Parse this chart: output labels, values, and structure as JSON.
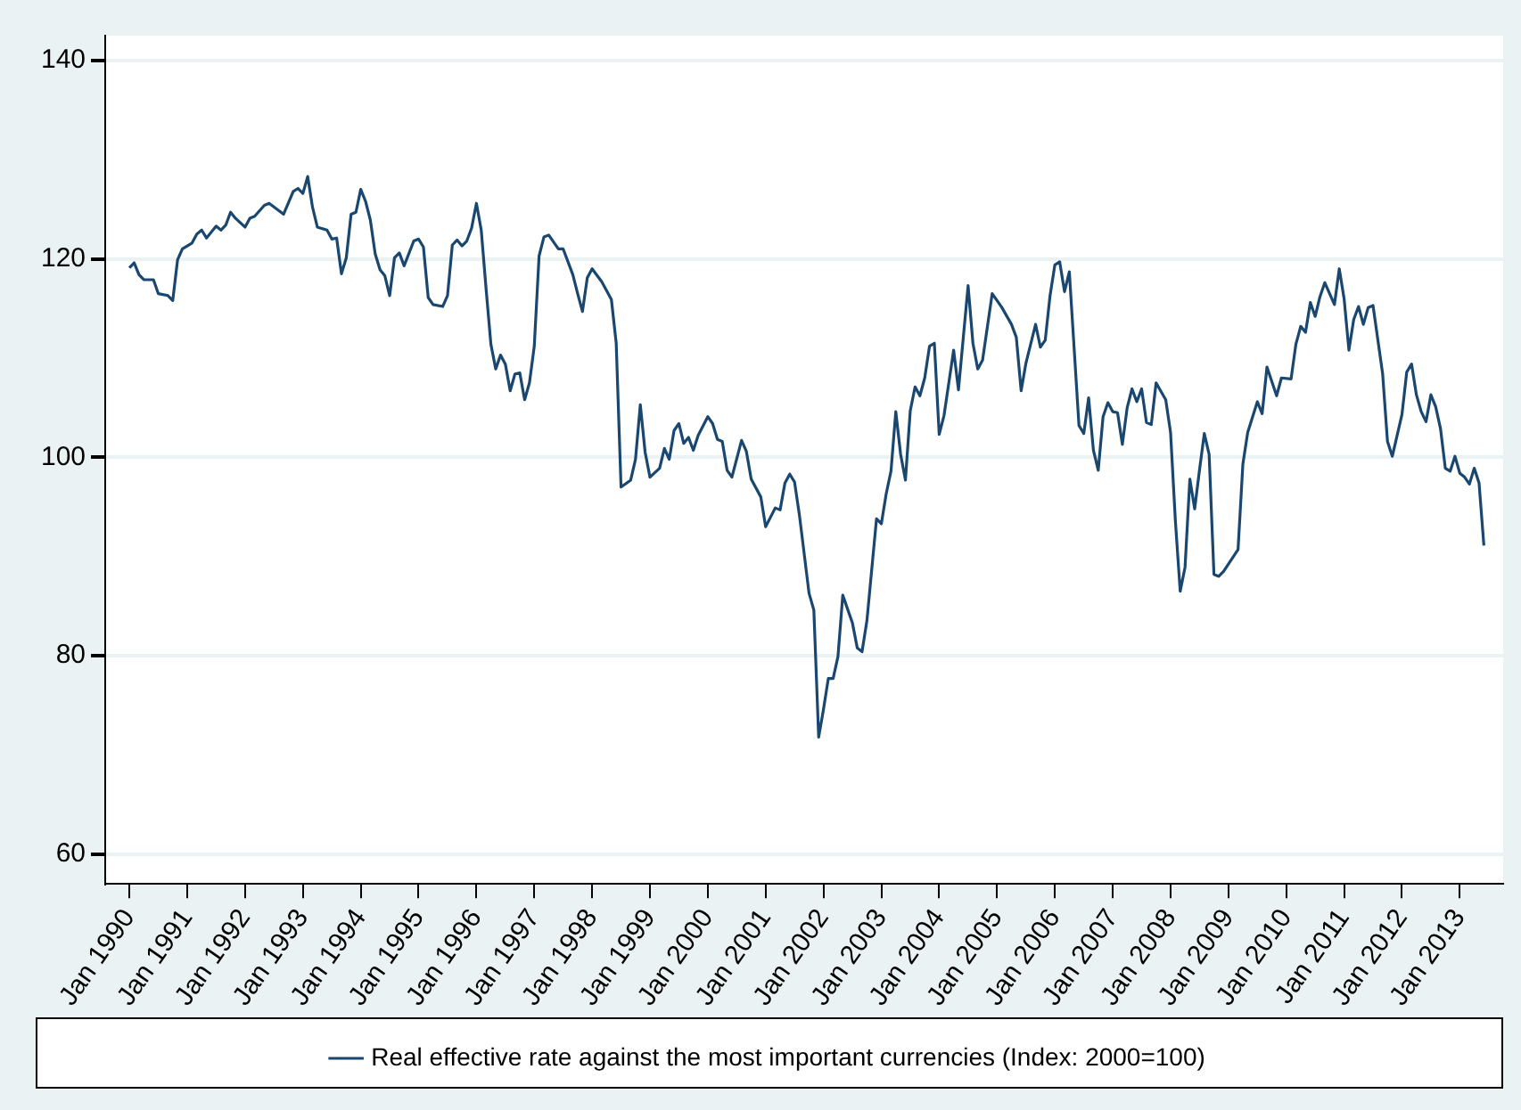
{
  "chart_data": {
    "type": "line",
    "legend": "bottom",
    "grid": "y",
    "marker": "none",
    "line_style": "solid",
    "xlim": [
      "1989-08",
      "2013-10"
    ],
    "ylim": [
      57,
      142.5
    ],
    "yticks": [
      60,
      80,
      100,
      120,
      140
    ],
    "xticks": [
      {
        "value": "1990-01",
        "label": "Jan 1990"
      },
      {
        "value": "1991-01",
        "label": "Jan 1991"
      },
      {
        "value": "1992-01",
        "label": "Jan 1992"
      },
      {
        "value": "1993-01",
        "label": "Jan 1993"
      },
      {
        "value": "1994-01",
        "label": "Jan 1994"
      },
      {
        "value": "1995-01",
        "label": "Jan 1995"
      },
      {
        "value": "1996-01",
        "label": "Jan 1996"
      },
      {
        "value": "1997-01",
        "label": "Jan 1997"
      },
      {
        "value": "1998-01",
        "label": "Jan 1998"
      },
      {
        "value": "1999-01",
        "label": "Jan 1999"
      },
      {
        "value": "2000-01",
        "label": "Jan 2000"
      },
      {
        "value": "2001-01",
        "label": "Jan 2001"
      },
      {
        "value": "2002-01",
        "label": "Jan 2002"
      },
      {
        "value": "2003-01",
        "label": "Jan 2003"
      },
      {
        "value": "2004-01",
        "label": "Jan 2004"
      },
      {
        "value": "2005-01",
        "label": "Jan 2005"
      },
      {
        "value": "2006-01",
        "label": "Jan 2006"
      },
      {
        "value": "2007-01",
        "label": "Jan 2007"
      },
      {
        "value": "2008-01",
        "label": "Jan 2008"
      },
      {
        "value": "2009-01",
        "label": "Jan 2009"
      },
      {
        "value": "2010-01",
        "label": "Jan 2010"
      },
      {
        "value": "2011-01",
        "label": "Jan 2011"
      },
      {
        "value": "2012-01",
        "label": "Jan 2012"
      },
      {
        "value": "2013-01",
        "label": "Jan 2013"
      }
    ],
    "series": [
      {
        "name": "Real effective rate against the most important currencies (Index: 2000=100)",
        "color": "#1a476f",
        "x": [
          "1990-01",
          "1990-02",
          "1990-03",
          "1990-04",
          "1990-06",
          "1990-07",
          "1990-09",
          "1990-10",
          "1990-11",
          "1990-12",
          "1991-02",
          "1991-03",
          "1991-04",
          "1991-05",
          "1991-07",
          "1991-08",
          "1991-09",
          "1991-10",
          "1991-11",
          "1992-01",
          "1992-02",
          "1992-03",
          "1992-05",
          "1992-06",
          "1992-09",
          "1992-11",
          "1992-12",
          "1993-01",
          "1993-02",
          "1993-03",
          "1993-04",
          "1993-06",
          "1993-07",
          "1993-08",
          "1993-09",
          "1993-10",
          "1993-11",
          "1993-12",
          "1994-01",
          "1994-02",
          "1994-03",
          "1994-04",
          "1994-05",
          "1994-06",
          "1994-07",
          "1994-08",
          "1994-09",
          "1994-10",
          "1994-12",
          "1995-01",
          "1995-02",
          "1995-03",
          "1995-04",
          "1995-06",
          "1995-07",
          "1995-08",
          "1995-09",
          "1995-10",
          "1995-11",
          "1995-12",
          "1996-01",
          "1996-02",
          "1996-03",
          "1996-04",
          "1996-05",
          "1996-06",
          "1996-07",
          "1996-08",
          "1996-09",
          "1996-10",
          "1996-11",
          "1996-12",
          "1997-01",
          "1997-02",
          "1997-03",
          "1997-04",
          "1997-06",
          "1997-07",
          "1997-09",
          "1997-10",
          "1997-11",
          "1997-12",
          "1998-01",
          "1998-03",
          "1998-05",
          "1998-06",
          "1998-07",
          "1998-09",
          "1998-10",
          "1998-11",
          "1998-12",
          "1999-01",
          "1999-03",
          "1999-04",
          "1999-05",
          "1999-06",
          "1999-07",
          "1999-08",
          "1999-09",
          "1999-10",
          "1999-11",
          "2000-01",
          "2000-02",
          "2000-03",
          "2000-04",
          "2000-05",
          "2000-06",
          "2000-08",
          "2000-09",
          "2000-10",
          "2000-12",
          "2001-01",
          "2001-03",
          "2001-04",
          "2001-05",
          "2001-06",
          "2001-07",
          "2001-08",
          "2001-10",
          "2001-11",
          "2001-12",
          "2002-01",
          "2002-02",
          "2002-03",
          "2002-04",
          "2002-05",
          "2002-07",
          "2002-08",
          "2002-09",
          "2002-10",
          "2002-12",
          "2003-01",
          "2003-02",
          "2003-03",
          "2003-04",
          "2003-05",
          "2003-06",
          "2003-07",
          "2003-08",
          "2003-09",
          "2003-10",
          "2003-11",
          "2003-12",
          "2004-01",
          "2004-02",
          "2004-04",
          "2004-05",
          "2004-07",
          "2004-08",
          "2004-09",
          "2004-10",
          "2004-12",
          "2005-02",
          "2005-04",
          "2005-05",
          "2005-06",
          "2005-07",
          "2005-09",
          "2005-10",
          "2005-11",
          "2005-12",
          "2006-01",
          "2006-02",
          "2006-03",
          "2006-04",
          "2006-06",
          "2006-07",
          "2006-08",
          "2006-09",
          "2006-10",
          "2006-11",
          "2006-12",
          "2007-01",
          "2007-02",
          "2007-03",
          "2007-04",
          "2007-05",
          "2007-06",
          "2007-07",
          "2007-08",
          "2007-09",
          "2007-10",
          "2007-12",
          "2008-01",
          "2008-02",
          "2008-03",
          "2008-04",
          "2008-05",
          "2008-06",
          "2008-07",
          "2008-08",
          "2008-09",
          "2008-10",
          "2008-11",
          "2008-12",
          "2009-03",
          "2009-04",
          "2009-05",
          "2009-07",
          "2009-08",
          "2009-09",
          "2009-11",
          "2009-12",
          "2010-02",
          "2010-03",
          "2010-04",
          "2010-05",
          "2010-06",
          "2010-07",
          "2010-08",
          "2010-09",
          "2010-11",
          "2010-12",
          "2011-01",
          "2011-02",
          "2011-03",
          "2011-04",
          "2011-05",
          "2011-06",
          "2011-07",
          "2011-09",
          "2011-10",
          "2011-11",
          "2012-01",
          "2012-02",
          "2012-03",
          "2012-04",
          "2012-05",
          "2012-06",
          "2012-07",
          "2012-08",
          "2012-09",
          "2012-10",
          "2012-11",
          "2012-12",
          "2013-01",
          "2013-02",
          "2013-03",
          "2013-04",
          "2013-05",
          "2013-06"
        ],
        "values": [
          119.1,
          119.6,
          118.4,
          117.9,
          117.9,
          116.5,
          116.3,
          115.8,
          119.9,
          121.0,
          121.6,
          122.5,
          122.9,
          122.1,
          123.3,
          122.9,
          123.4,
          124.7,
          124.1,
          123.2,
          124.1,
          124.3,
          125.4,
          125.6,
          124.5,
          126.8,
          127.1,
          126.6,
          128.3,
          125.2,
          123.2,
          122.9,
          122.0,
          122.1,
          118.5,
          120.1,
          124.5,
          124.7,
          127.0,
          125.8,
          123.9,
          120.5,
          118.9,
          118.3,
          116.3,
          120.1,
          120.6,
          119.3,
          121.8,
          122.0,
          121.2,
          116.1,
          115.4,
          115.2,
          116.3,
          121.4,
          121.9,
          121.3,
          121.8,
          123.1,
          125.6,
          122.9,
          117.0,
          111.4,
          108.9,
          110.3,
          109.4,
          106.7,
          108.4,
          108.5,
          105.8,
          107.5,
          111.2,
          120.3,
          122.2,
          122.4,
          121.0,
          121.0,
          118.4,
          116.5,
          114.7,
          118.1,
          119.0,
          117.7,
          115.9,
          111.5,
          97.0,
          97.7,
          99.8,
          105.3,
          100.5,
          98.0,
          98.9,
          100.9,
          99.8,
          102.7,
          103.4,
          101.4,
          102.0,
          100.7,
          102.2,
          104.1,
          103.4,
          101.8,
          101.6,
          98.7,
          98.0,
          101.7,
          100.6,
          97.8,
          96.0,
          93.0,
          94.9,
          94.7,
          97.4,
          98.3,
          97.5,
          94.2,
          86.3,
          84.6,
          71.8,
          74.6,
          77.7,
          77.7,
          79.9,
          86.1,
          83.3,
          80.8,
          80.4,
          83.5,
          93.8,
          93.3,
          96.3,
          98.6,
          104.6,
          100.3,
          97.7,
          104.7,
          107.1,
          106.2,
          108.0,
          111.2,
          111.5,
          102.3,
          104.2,
          110.8,
          106.8,
          117.3,
          111.5,
          108.9,
          109.8,
          116.5,
          115.1,
          113.4,
          112.1,
          106.7,
          109.5,
          113.4,
          111.1,
          111.8,
          116.3,
          119.4,
          119.7,
          116.7,
          118.7,
          103.2,
          102.4,
          106.0,
          100.7,
          98.7,
          104.1,
          105.5,
          104.6,
          104.5,
          101.3,
          105.0,
          106.9,
          105.6,
          106.9,
          103.5,
          103.3,
          107.5,
          105.8,
          102.5,
          93.6,
          86.5,
          88.9,
          97.8,
          94.8,
          98.7,
          102.4,
          100.3,
          88.2,
          88.0,
          88.5,
          90.7,
          99.3,
          102.5,
          105.6,
          104.4,
          109.1,
          106.2,
          108.0,
          107.9,
          111.4,
          113.2,
          112.6,
          115.6,
          114.2,
          116.2,
          117.6,
          115.4,
          119.0,
          116.0,
          110.8,
          113.9,
          115.2,
          113.4,
          115.1,
          115.3,
          108.4,
          101.6,
          100.1,
          104.3,
          108.6,
          109.4,
          106.3,
          104.6,
          103.6,
          106.3,
          105.1,
          102.9,
          98.9,
          98.6,
          100.1,
          98.4,
          98.0,
          97.3,
          98.9,
          97.4,
          91.1
        ]
      }
    ]
  }
}
